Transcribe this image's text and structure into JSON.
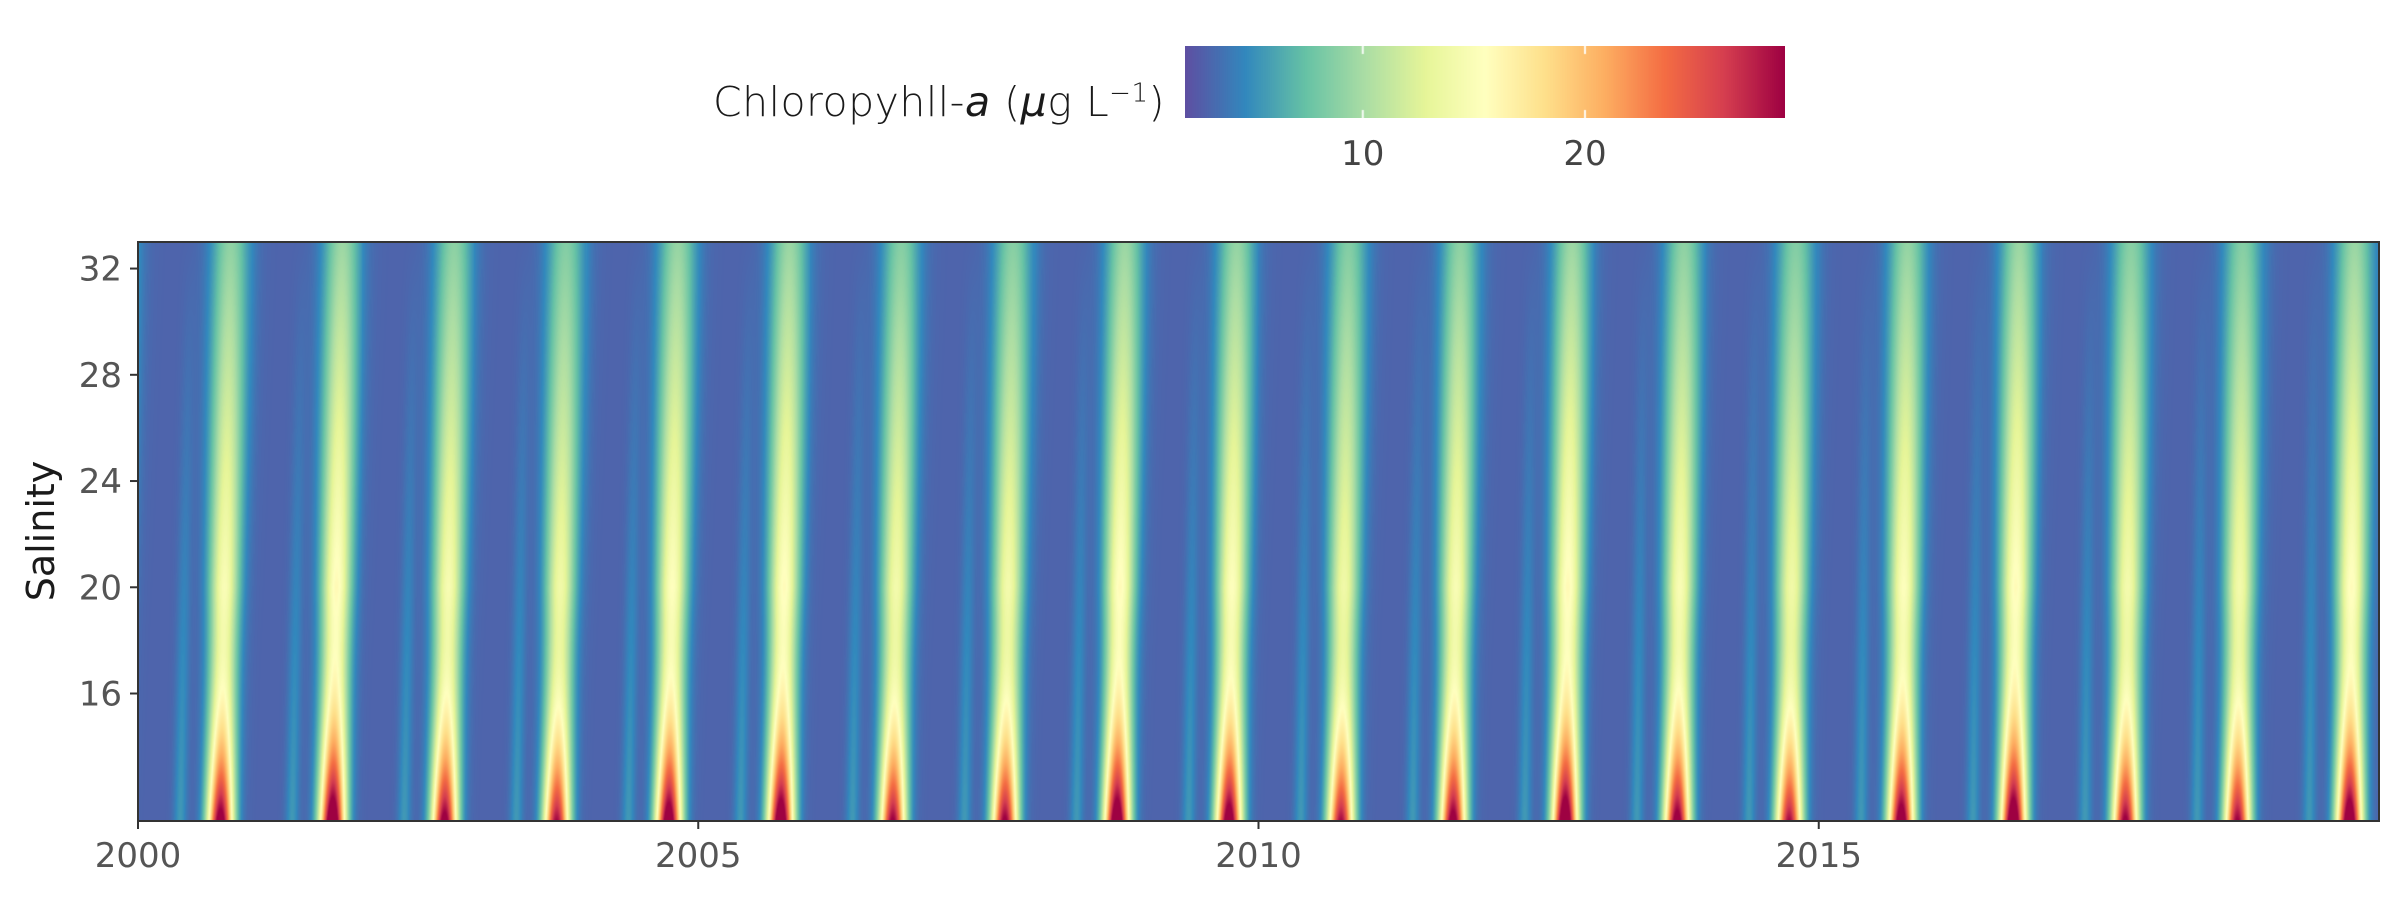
{
  "chart_data": {
    "type": "heatmap",
    "title": "",
    "xlabel": "",
    "ylabel": "Salinity",
    "legend": {
      "title_main": "Chloropyhll-",
      "title_italic": "a",
      "title_unit_open": " (",
      "title_unit_mu": "μ",
      "title_unit_rest": "g L",
      "title_unit_sup": "−1",
      "title_unit_close": ")",
      "placement": "top",
      "range": [
        2,
        29
      ],
      "ticks": [
        10,
        20
      ],
      "tick_labels": [
        "10",
        "20"
      ],
      "palette": [
        "#5e4fa2",
        "#3288bd",
        "#66c2a5",
        "#abdda4",
        "#e6f598",
        "#ffffbf",
        "#fee08b",
        "#fdae61",
        "#f46d43",
        "#d53e4f",
        "#9e0142"
      ]
    },
    "x_range": [
      2000,
      2020
    ],
    "y_range": [
      11.2,
      33
    ],
    "x_ticks": [
      2000,
      2005,
      2010,
      2015
    ],
    "x_tick_labels": [
      "2000",
      "2005",
      "2010",
      "2015"
    ],
    "y_ticks": [
      16,
      20,
      24,
      28,
      32
    ],
    "y_tick_labels": [
      "16",
      "20",
      "24",
      "28",
      "32"
    ],
    "pattern": {
      "description_values": "annual bloom peaks; chlorophyll highest at low salinity near peak",
      "peak_value_low_salinity": 28,
      "baseline_value": 3,
      "peak_year_fraction": 0.75
    }
  }
}
